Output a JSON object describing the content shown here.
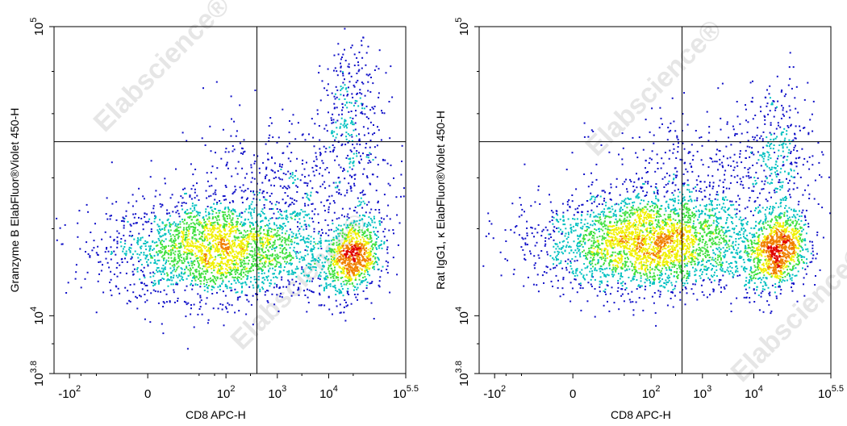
{
  "chart_data": [
    {
      "type": "scatter",
      "style": "density-pseudocolor",
      "xlabel": "CD8 APC-H",
      "ylabel": "Granzyme B ElabFluor®Violet 450-H",
      "x_scale": "biexponential",
      "y_scale": "log",
      "x_ticks": [
        {
          "value": -100,
          "base": "-10",
          "exp": "2"
        },
        {
          "value": 0,
          "base": "0",
          "exp": ""
        },
        {
          "value": 100,
          "base": "10",
          "exp": "2"
        },
        {
          "value": 1000,
          "base": "10",
          "exp": "3"
        },
        {
          "value": 10000,
          "base": "10",
          "exp": "4"
        },
        {
          "value": 316228,
          "base": "10",
          "exp": "5.5"
        }
      ],
      "y_ticks": [
        {
          "value": 6310,
          "base": "10",
          "exp": "3.8"
        },
        {
          "value": 10000,
          "base": "10",
          "exp": "4"
        },
        {
          "value": 100000,
          "base": "10",
          "exp": "5"
        }
      ],
      "xlim": [
        -200,
        316228
      ],
      "ylim": [
        6310,
        100000
      ],
      "gate": {
        "x": 400,
        "y": 40000
      },
      "populations": [
        {
          "name": "",
          "center_x": 70,
          "center_y": 17000,
          "points": 2600
        },
        {
          "name": "",
          "center_x": 28000,
          "center_y": 16000,
          "points": 900
        },
        {
          "name": "",
          "center_x": 28000,
          "center_y": 50000,
          "points": 300
        },
        {
          "name": "",
          "center_x": 1500,
          "center_y": 28000,
          "points": 500
        }
      ]
    },
    {
      "type": "scatter",
      "style": "density-pseudocolor",
      "xlabel": "CD8 APC-H",
      "ylabel": "Rat IgG1, κ ElabFluor®Violet 450-H",
      "x_scale": "biexponential",
      "y_scale": "log",
      "x_ticks": [
        {
          "value": -100,
          "base": "-10",
          "exp": "2"
        },
        {
          "value": 0,
          "base": "0",
          "exp": ""
        },
        {
          "value": 100,
          "base": "10",
          "exp": "2"
        },
        {
          "value": 1000,
          "base": "10",
          "exp": "3"
        },
        {
          "value": 10000,
          "base": "10",
          "exp": "4"
        },
        {
          "value": 316228,
          "base": "10",
          "exp": "5.5"
        }
      ],
      "y_ticks": [
        {
          "value": 6310,
          "base": "10",
          "exp": "3.8"
        },
        {
          "value": 10000,
          "base": "10",
          "exp": "4"
        },
        {
          "value": 100000,
          "base": "10",
          "exp": "5"
        }
      ],
      "xlim": [
        -200,
        316228
      ],
      "ylim": [
        6310,
        100000
      ],
      "gate": {
        "x": 400,
        "y": 40000
      },
      "populations": [
        {
          "name": "",
          "center_x": 100,
          "center_y": 18000,
          "points": 3000
        },
        {
          "name": "",
          "center_x": 28000,
          "center_y": 17000,
          "points": 1000
        },
        {
          "name": "",
          "center_x": 28000,
          "center_y": 38000,
          "points": 250
        },
        {
          "name": "",
          "center_x": 1500,
          "center_y": 30000,
          "points": 450
        }
      ]
    }
  ],
  "watermark": "Elabscience®",
  "colors": {
    "density_low": "#1010c8",
    "density_mid": "#00c0c0",
    "density_midhigh": "#40e040",
    "density_high": "#f0f000",
    "density_peak": "#e00000",
    "gate_line": "#000000",
    "watermark": "#e6e6e6"
  }
}
